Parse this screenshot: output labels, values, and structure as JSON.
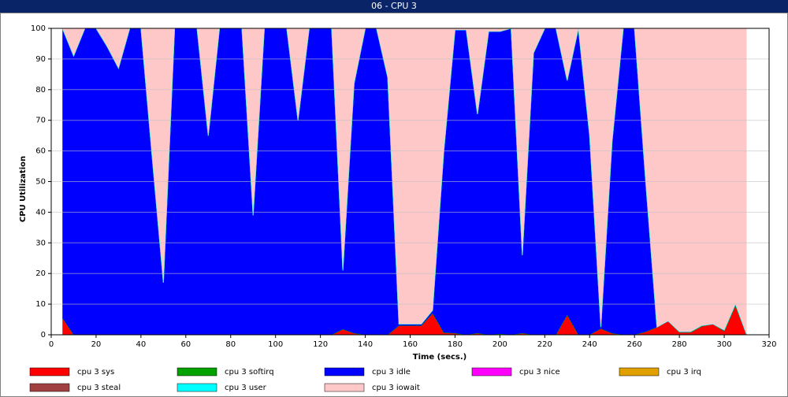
{
  "window_title": "06 - CPU 3",
  "chart_data": {
    "type": "stacked_area",
    "xlabel": "Time (secs.)",
    "ylabel": "CPU Utilization",
    "xlim": [
      0,
      320
    ],
    "xticks": [
      0,
      20,
      40,
      60,
      80,
      100,
      120,
      140,
      160,
      180,
      200,
      220,
      240,
      260,
      280,
      300,
      320
    ],
    "ylim": [
      0,
      100
    ],
    "yticks": [
      0,
      10,
      20,
      30,
      40,
      50,
      60,
      70,
      80,
      90,
      100
    ],
    "grid": true,
    "x": [
      5,
      10,
      15,
      20,
      25,
      30,
      35,
      40,
      45,
      50,
      55,
      60,
      65,
      70,
      75,
      80,
      85,
      90,
      95,
      100,
      105,
      110,
      115,
      120,
      125,
      130,
      135,
      140,
      145,
      150,
      155,
      160,
      165,
      170,
      175,
      180,
      185,
      190,
      195,
      200,
      205,
      210,
      215,
      220,
      225,
      230,
      235,
      240,
      245,
      250,
      255,
      260,
      265,
      270,
      275,
      280,
      285,
      290,
      295,
      300,
      305,
      310
    ],
    "series": [
      {
        "name": "cpu 3 sys",
        "color": "#ff0000",
        "values": [
          5.5,
          0,
          0,
          0,
          0,
          0,
          0,
          0,
          0,
          0,
          0,
          0,
          0,
          0,
          0,
          0,
          0,
          0,
          0,
          0,
          0,
          0,
          0,
          0,
          0,
          1.8,
          0.5,
          0,
          0,
          0,
          3,
          3,
          3,
          7,
          0.7,
          0.5,
          0,
          0.5,
          0,
          0.3,
          0,
          0.5,
          0,
          0,
          0,
          6.5,
          0,
          0,
          2,
          0.5,
          0,
          0,
          1,
          2.5,
          4.5,
          0.8,
          0.8,
          2.8,
          3.5,
          1.2,
          9.5,
          0
        ]
      },
      {
        "name": "cpu 3 softirq",
        "color": "#00a000",
        "values": [
          0,
          0,
          0,
          0,
          0,
          0,
          0,
          0,
          0,
          0,
          0,
          0,
          0,
          0,
          0,
          0,
          0,
          0,
          0,
          0,
          0,
          0,
          0,
          0,
          0,
          0,
          0,
          0,
          0,
          0,
          0,
          0,
          0,
          0,
          0,
          0,
          0,
          0,
          0,
          0,
          0,
          0,
          0,
          0,
          0,
          0,
          0,
          0,
          0,
          0,
          0,
          0,
          0,
          0,
          0,
          0,
          0,
          0,
          0,
          0,
          0,
          0
        ]
      },
      {
        "name": "cpu 3 idle",
        "color": "#0000ff",
        "values": [
          94.5,
          91,
          100,
          100,
          94,
          87,
          100,
          100,
          58,
          17,
          100,
          100,
          100,
          65,
          100,
          100,
          100,
          39,
          100,
          100,
          100,
          70,
          100,
          100,
          100,
          19.2,
          81.5,
          100,
          100,
          84,
          0.5,
          0.5,
          0.5,
          1,
          59.3,
          99,
          99.5,
          71.5,
          99,
          98.7,
          100,
          25.5,
          92,
          100,
          100,
          76.5,
          100,
          65,
          0.5,
          62.5,
          100,
          100,
          49,
          0,
          0,
          0.2,
          0.2,
          0.2,
          0,
          0.3,
          0.5,
          0
        ]
      },
      {
        "name": "cpu 3 nice",
        "color": "#ff00ff",
        "values": [
          0,
          0,
          0,
          0,
          0,
          0,
          0,
          0,
          0,
          0,
          0,
          0,
          0,
          0,
          0,
          0,
          0,
          0,
          0,
          0,
          0,
          0,
          0,
          0,
          0,
          0,
          0,
          0,
          0,
          0,
          0,
          0,
          0,
          0,
          0,
          0,
          0,
          0,
          0,
          0,
          0,
          0,
          0,
          0,
          0,
          0,
          0,
          0,
          0,
          0,
          0,
          0,
          0,
          0,
          0,
          0,
          0,
          0,
          0,
          0,
          0,
          0
        ]
      },
      {
        "name": "cpu 3 irq",
        "color": "#e0a000",
        "values": [
          0,
          0,
          0,
          0,
          0,
          0,
          0,
          0,
          0,
          0,
          0,
          0,
          0,
          0,
          0,
          0,
          0,
          0,
          0,
          0,
          0,
          0,
          0,
          0,
          0,
          0,
          0,
          0,
          0,
          0,
          0,
          0,
          0,
          0,
          0,
          0,
          0,
          0,
          0,
          0,
          0,
          0,
          0,
          0,
          0,
          0,
          0,
          0,
          0,
          0,
          0,
          0,
          0,
          0,
          0,
          0,
          0,
          0,
          0,
          0,
          0,
          0
        ]
      },
      {
        "name": "cpu 3 steal",
        "color": "#a04040",
        "values": [
          0,
          0,
          0,
          0,
          0,
          0,
          0,
          0,
          0,
          0,
          0,
          0,
          0,
          0,
          0,
          0,
          0,
          0,
          0,
          0,
          0,
          0,
          0,
          0,
          0,
          0,
          0,
          0,
          0,
          0,
          0,
          0,
          0,
          0,
          0,
          0,
          0,
          0,
          0,
          0,
          0,
          0,
          0,
          0,
          0,
          0,
          0,
          0,
          0,
          0,
          0,
          0,
          0,
          0,
          0,
          0,
          0,
          0,
          0,
          0,
          0,
          0
        ]
      },
      {
        "name": "cpu 3 user",
        "color": "#00ffff",
        "values": [
          0,
          0,
          0,
          0,
          0,
          0,
          0,
          0,
          0,
          0,
          0,
          0,
          0,
          0,
          0,
          0,
          0,
          0,
          0,
          0,
          0,
          0,
          0,
          0,
          0,
          0,
          0,
          0,
          0,
          0,
          0,
          0,
          0,
          0,
          0,
          0,
          0,
          0,
          0,
          0,
          0,
          0,
          0,
          0,
          0,
          0,
          0,
          0,
          0,
          0,
          0,
          0,
          0,
          0,
          0,
          0,
          0,
          0,
          0,
          0,
          0,
          0
        ]
      },
      {
        "name": "cpu 3 iowait",
        "color": "#ffc8c8",
        "values": [
          0,
          9,
          0,
          0,
          6,
          13,
          0,
          0,
          42,
          83,
          0,
          0,
          0,
          35,
          0,
          0,
          0,
          61,
          0,
          0,
          0,
          30,
          0,
          0,
          0,
          79,
          18,
          0,
          0,
          16,
          96.5,
          96.5,
          96.5,
          92,
          40,
          0.5,
          0.5,
          28,
          1,
          1,
          0,
          74,
          8,
          0,
          0,
          17,
          0,
          35,
          97.5,
          37,
          0,
          0,
          50,
          97.5,
          95.5,
          99,
          99,
          97,
          96.5,
          98.5,
          90,
          100
        ]
      }
    ]
  }
}
